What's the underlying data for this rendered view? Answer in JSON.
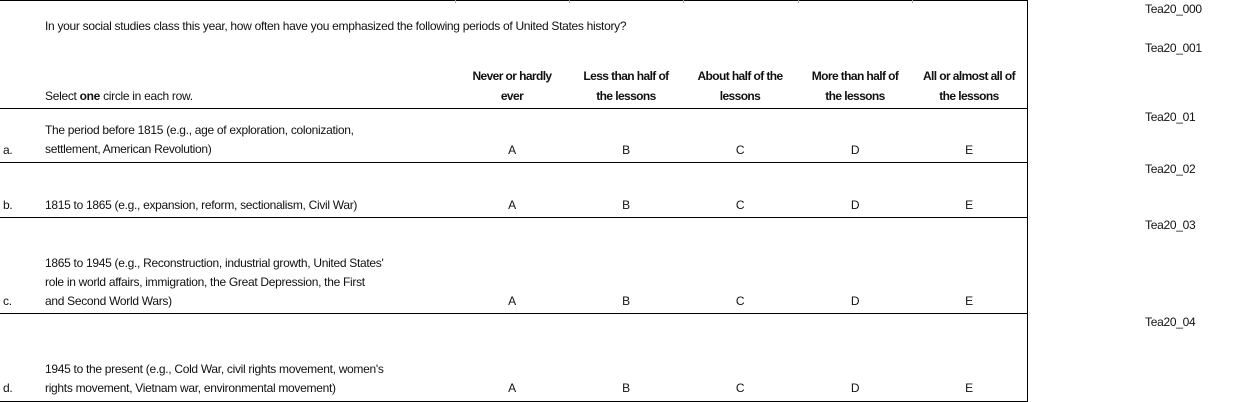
{
  "question": "In your social studies class this year, how often have you emphasized the following periods of United States history?",
  "instruction": {
    "before": "Select ",
    "bold": "one",
    "after": " circle in each row."
  },
  "columns": [
    {
      "line1": "Never or hardly",
      "line2": "ever"
    },
    {
      "line1": "Less than half of",
      "line2": "the lessons"
    },
    {
      "line1": "About half of the",
      "line2": "lessons"
    },
    {
      "line1": "More than half of",
      "line2": "the lessons"
    },
    {
      "line1": "All or almost all of",
      "line2": "the lessons"
    }
  ],
  "options": [
    "A",
    "B",
    "C",
    "D",
    "E"
  ],
  "rows": [
    {
      "letter": "a.",
      "lines": [
        "The period before 1815 (e.g., age of exploration, colonization,",
        "settlement, American Revolution)"
      ]
    },
    {
      "letter": "b.",
      "lines": [
        "1815 to 1865 (e.g., expansion, reform, sectionalism, Civil War)"
      ]
    },
    {
      "letter": "c.",
      "lines": [
        "1865 to 1945 (e.g., Reconstruction, industrial growth, United States'",
        "role in world affairs, immigration, the Great Depression, the First",
        "and Second World Wars)"
      ]
    },
    {
      "letter": "d.",
      "lines": [
        "1945 to the present (e.g., Cold War, civil rights movement, women's",
        "rights movement, Vietnam war, environmental movement)"
      ]
    }
  ],
  "codes": [
    "Tea20_000",
    "Tea20_001",
    "Tea20_01",
    "Tea20_02",
    "Tea20_03",
    "Tea20_04"
  ]
}
